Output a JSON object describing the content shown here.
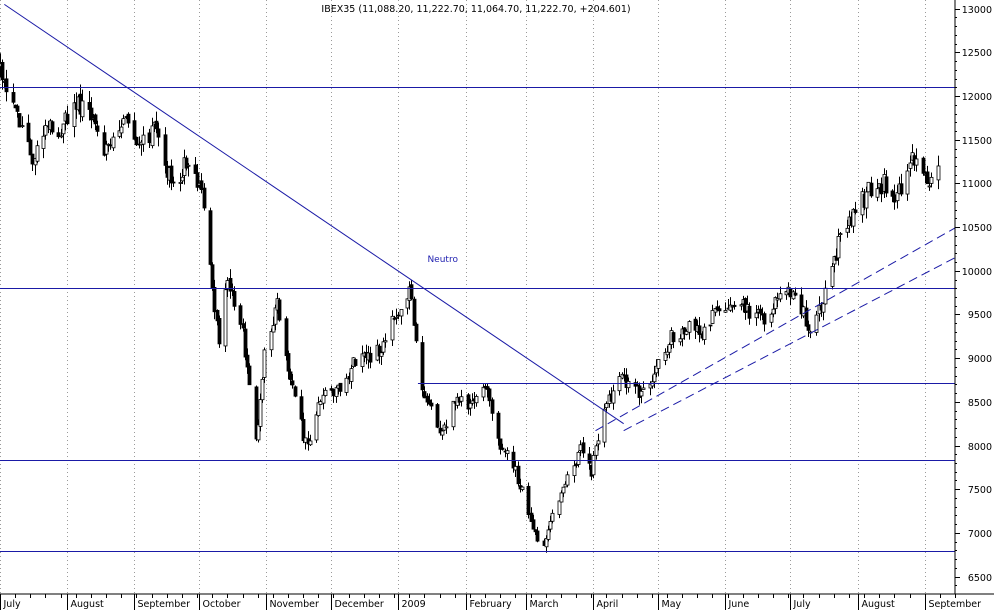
{
  "chart_data": {
    "type": "candlestick",
    "title": "IBEX35 (11,088.20, 11,222.70, 11,064.70, 11,222.70, +204.601)",
    "ylim": [
      6300,
      13100
    ],
    "yticks": [
      6500,
      7000,
      7500,
      8000,
      8500,
      9000,
      9500,
      10000,
      10500,
      11000,
      11500,
      12000,
      12500,
      13000
    ],
    "x_domain": [
      "2008-07-01",
      "2009-09-15"
    ],
    "month_ticks": [
      {
        "date": "2008-07-01",
        "label": "July"
      },
      {
        "date": "2008-08-01",
        "label": "August"
      },
      {
        "date": "2008-09-01",
        "label": "September"
      },
      {
        "date": "2008-10-01",
        "label": "October"
      },
      {
        "date": "2008-11-01",
        "label": "November"
      },
      {
        "date": "2008-12-01",
        "label": "December"
      },
      {
        "date": "2009-01-01",
        "label": "2009"
      },
      {
        "date": "2009-02-01",
        "label": "February"
      },
      {
        "date": "2009-03-01",
        "label": "March"
      },
      {
        "date": "2009-04-01",
        "label": "April"
      },
      {
        "date": "2009-05-01",
        "label": "May"
      },
      {
        "date": "2009-06-01",
        "label": "June"
      },
      {
        "date": "2009-07-01",
        "label": "July"
      },
      {
        "date": "2009-08-01",
        "label": "August"
      },
      {
        "date": "2009-09-01",
        "label": "September"
      }
    ],
    "anchors": [
      [
        "2008-07-01",
        12250
      ],
      [
        "2008-07-04",
        11950
      ],
      [
        "2008-07-10",
        11750
      ],
      [
        "2008-07-16",
        11200
      ],
      [
        "2008-07-22",
        11750
      ],
      [
        "2008-07-28",
        11550
      ],
      [
        "2008-08-05",
        11950
      ],
      [
        "2008-08-12",
        11700
      ],
      [
        "2008-08-20",
        11350
      ],
      [
        "2008-08-27",
        11750
      ],
      [
        "2008-09-03",
        11450
      ],
      [
        "2008-09-10",
        11650
      ],
      [
        "2008-09-15",
        11250
      ],
      [
        "2008-09-19",
        10900
      ],
      [
        "2008-09-26",
        11300
      ],
      [
        "2008-10-01",
        11000
      ],
      [
        "2008-10-06",
        10100
      ],
      [
        "2008-10-10",
        9100
      ],
      [
        "2008-10-14",
        9900
      ],
      [
        "2008-10-21",
        9300
      ],
      [
        "2008-10-27",
        8000
      ],
      [
        "2008-10-31",
        9100
      ],
      [
        "2008-11-06",
        9600
      ],
      [
        "2008-11-12",
        8700
      ],
      [
        "2008-11-20",
        7950
      ],
      [
        "2008-11-26",
        8500
      ],
      [
        "2008-12-05",
        8700
      ],
      [
        "2008-12-12",
        8950
      ],
      [
        "2008-12-22",
        9050
      ],
      [
        "2008-12-31",
        9500
      ],
      [
        "2009-01-06",
        9750
      ],
      [
        "2009-01-12",
        8700
      ],
      [
        "2009-01-20",
        8100
      ],
      [
        "2009-01-28",
        8600
      ],
      [
        "2009-02-04",
        8450
      ],
      [
        "2009-02-10",
        8750
      ],
      [
        "2009-02-17",
        8000
      ],
      [
        "2009-02-24",
        7700
      ],
      [
        "2009-03-02",
        7200
      ],
      [
        "2009-03-09",
        6800
      ],
      [
        "2009-03-13",
        7250
      ],
      [
        "2009-03-19",
        7550
      ],
      [
        "2009-03-26",
        7950
      ],
      [
        "2009-03-31",
        7700
      ],
      [
        "2009-04-06",
        8400
      ],
      [
        "2009-04-14",
        8800
      ],
      [
        "2009-04-21",
        8600
      ],
      [
        "2009-04-28",
        8800
      ],
      [
        "2009-05-06",
        9200
      ],
      [
        "2009-05-13",
        9350
      ],
      [
        "2009-05-20",
        9300
      ],
      [
        "2009-05-28",
        9500
      ],
      [
        "2009-06-03",
        9700
      ],
      [
        "2009-06-10",
        9600
      ],
      [
        "2009-06-17",
        9450
      ],
      [
        "2009-06-24",
        9600
      ],
      [
        "2009-06-30",
        9850
      ],
      [
        "2009-07-07",
        9500
      ],
      [
        "2009-07-10",
        9300
      ],
      [
        "2009-07-16",
        9700
      ],
      [
        "2009-07-23",
        10300
      ],
      [
        "2009-07-30",
        10700
      ],
      [
        "2009-08-06",
        10900
      ],
      [
        "2009-08-13",
        11000
      ],
      [
        "2009-08-18",
        10750
      ],
      [
        "2009-08-26",
        11300
      ],
      [
        "2009-09-02",
        11000
      ],
      [
        "2009-09-07",
        11200
      ]
    ],
    "horizontal_levels": [
      12100,
      9800,
      7830,
      6790
    ],
    "partial_level": {
      "value": 8720,
      "from": "2009-01-10"
    },
    "trendline": {
      "from": [
        "2008-07-03",
        13050
      ],
      "to": [
        "2009-04-15",
        8250
      ]
    },
    "channel_lines": [
      {
        "from": [
          "2009-04-02",
          8170
        ],
        "to": [
          "2009-09-15",
          10490
        ]
      },
      {
        "from": [
          "2009-04-15",
          8170
        ],
        "to": [
          "2009-09-15",
          10150
        ]
      }
    ],
    "annotations": [
      {
        "text": "Neutro",
        "date": "2009-01-07",
        "value": 10100
      }
    ]
  }
}
